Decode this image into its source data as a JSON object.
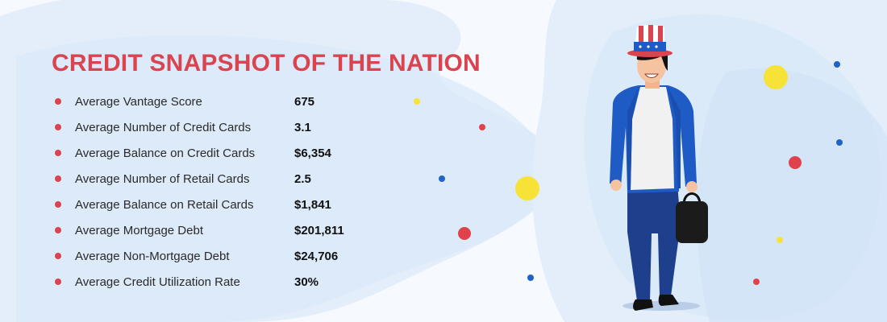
{
  "colors": {
    "title": "#d9444f",
    "bullet": "#d9444f",
    "blob": "#d8e8f8",
    "dot_red": "#e0424c",
    "dot_yellow": "#f7e238",
    "dot_blue": "#1f62c8"
  },
  "title": "CREDIT SNAPSHOT OF THE NATION",
  "stats": [
    {
      "label": "Average Vantage Score",
      "value": "675"
    },
    {
      "label": "Average Number of Credit Cards",
      "value": "3.1"
    },
    {
      "label": "Average Balance on Credit Cards",
      "value": "$6,354"
    },
    {
      "label": "Average Number of Retail Cards",
      "value": "2.5"
    },
    {
      "label": "Average Balance on Retail Cards",
      "value": "$1,841"
    },
    {
      "label": "Average Mortgage Debt",
      "value": "$201,811"
    },
    {
      "label": "Average Non-Mortgage Debt",
      "value": "$24,706"
    },
    {
      "label": "Average Credit Utilization Rate",
      "value": "30%"
    }
  ],
  "illustration": {
    "subject": "uncle-sam-hat-man"
  }
}
